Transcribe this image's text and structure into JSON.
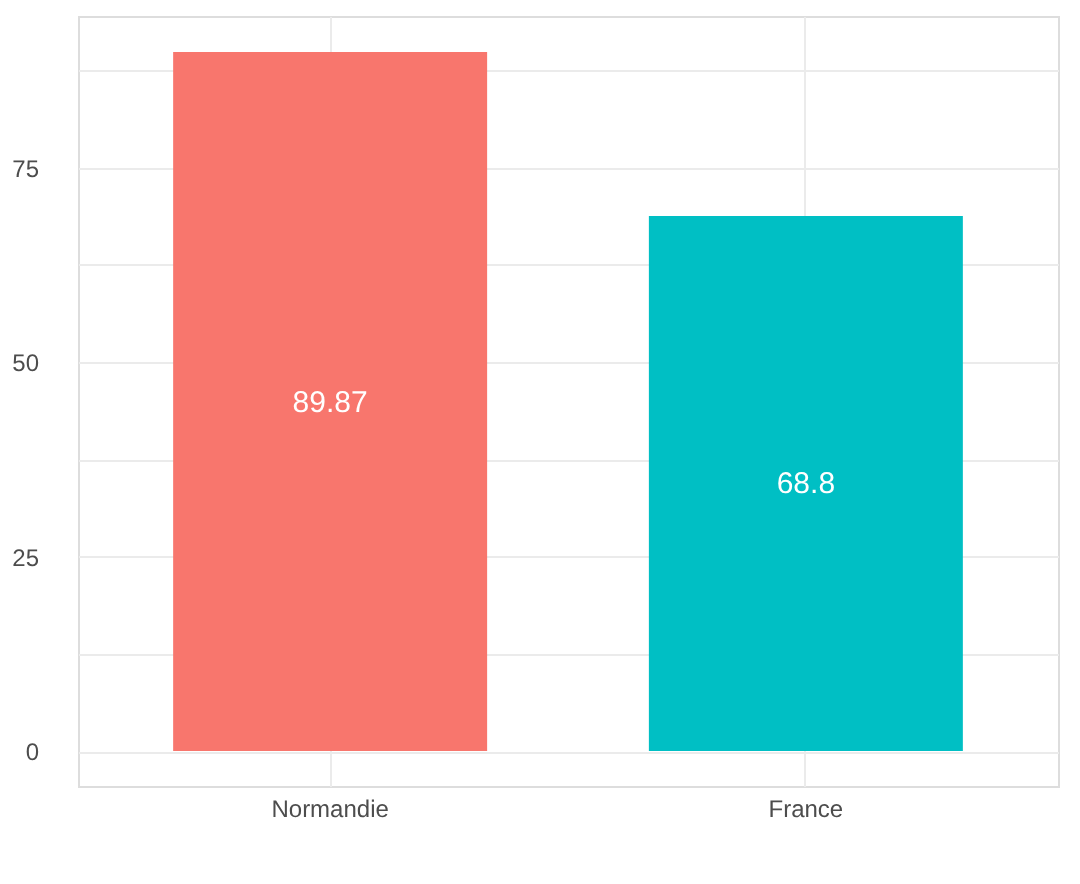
{
  "chart_data": {
    "type": "bar",
    "categories": [
      "Normandie",
      "France"
    ],
    "values": [
      89.87,
      68.8
    ],
    "colors": [
      "#f8766d",
      "#00bfc4"
    ],
    "ylim": [
      -4.5,
      94.5
    ],
    "yticks": [
      0,
      {
        "value": 12.5,
        "label": null
      },
      25,
      {
        "value": 37.5,
        "label": null
      },
      50,
      {
        "value": 62.5,
        "label": null
      },
      75,
      {
        "value": 87.5,
        "label": null
      }
    ],
    "grid": true,
    "data_labels": true,
    "legend": false
  }
}
